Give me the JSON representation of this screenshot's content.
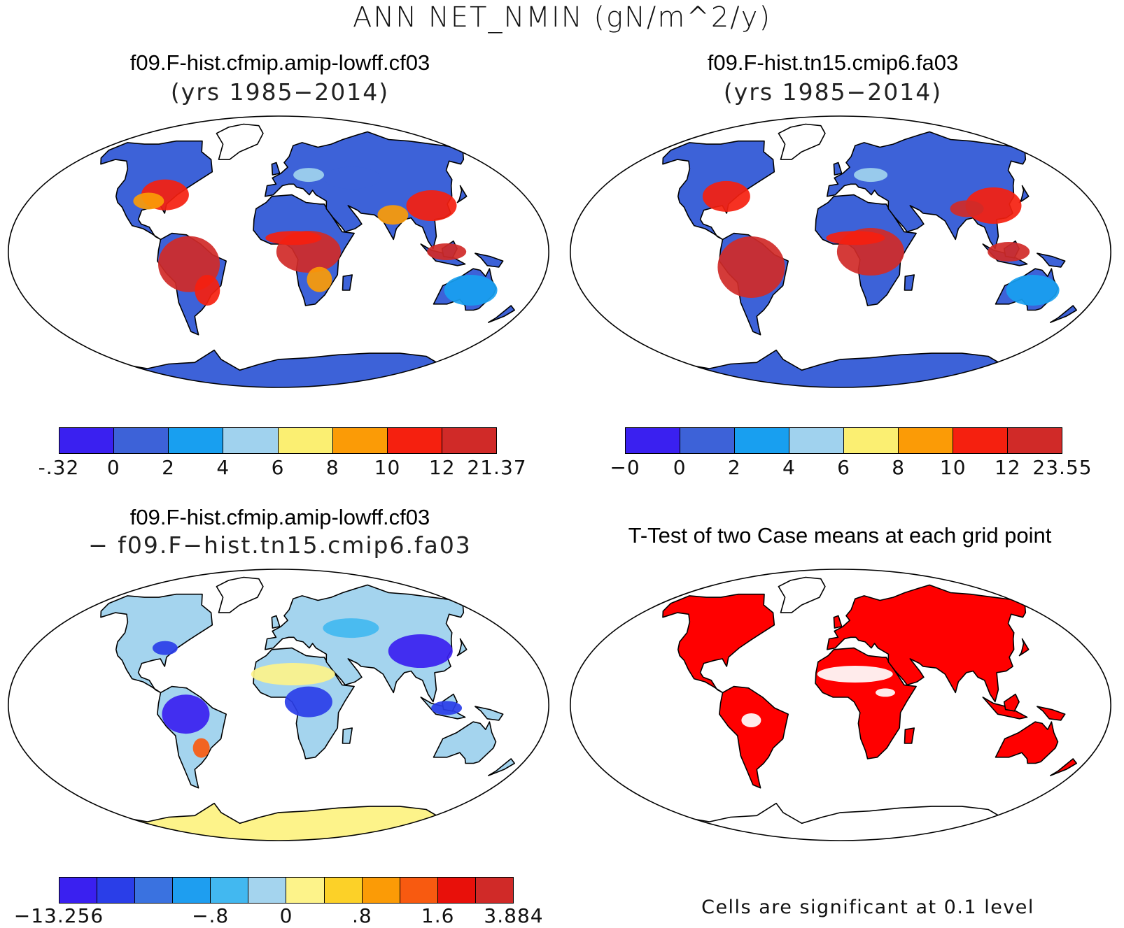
{
  "title": "ANN NET_NMIN (gN/m^2/y)",
  "panels": {
    "top_left": {
      "title": "f09.F-hist.cfmip.amip-lowff.cf03",
      "subtitle": "(yrs 1985−2014)",
      "colorbar": {
        "colors": [
          "#3a20f0",
          "#3d62d8",
          "#189ff0",
          "#a0d2ee",
          "#fbef72",
          "#fb9b06",
          "#f5200f",
          "#d02a28"
        ],
        "ticks": [
          "-.32",
          "0",
          "2",
          "4",
          "6",
          "8",
          "10",
          "12",
          "21.37"
        ]
      }
    },
    "top_right": {
      "title": "f09.F-hist.tn15.cmip6.fa03",
      "subtitle": "(yrs 1985−2014)",
      "colorbar": {
        "colors": [
          "#3a20f0",
          "#3d62d8",
          "#189ff0",
          "#a0d2ee",
          "#fbef72",
          "#fb9b06",
          "#f5200f",
          "#d02a28"
        ],
        "ticks": [
          "−0",
          "0",
          "2",
          "4",
          "6",
          "8",
          "10",
          "12",
          "23.55"
        ]
      }
    },
    "bottom_left": {
      "title": "f09.F-hist.cfmip.amip-lowff.cf03",
      "subtitle": "− f09.F−hist.tn15.cmip6.fa03",
      "colorbar": {
        "colors": [
          "#3a20f0",
          "#2a3ee8",
          "#3a72e0",
          "#1e9ef0",
          "#42b8f0",
          "#a4d4ee",
          "#fdf38a",
          "#fcd128",
          "#fb9b06",
          "#f85a10",
          "#e8100a",
          "#d02a28"
        ],
        "ticks": [
          {
            "label": "−13.256",
            "slot": 0
          },
          {
            "label": "−.8",
            "slot": 4
          },
          {
            "label": "0",
            "slot": 6
          },
          {
            "label": ".8",
            "slot": 8
          },
          {
            "label": "1.6",
            "slot": 10
          },
          {
            "label": "3.884",
            "slot": 12
          }
        ]
      }
    },
    "bottom_right": {
      "title": "T-Test of two Case means at each grid point",
      "note": "Cells are significant at 0.1 level",
      "significance_color": "#ff0000"
    }
  }
}
